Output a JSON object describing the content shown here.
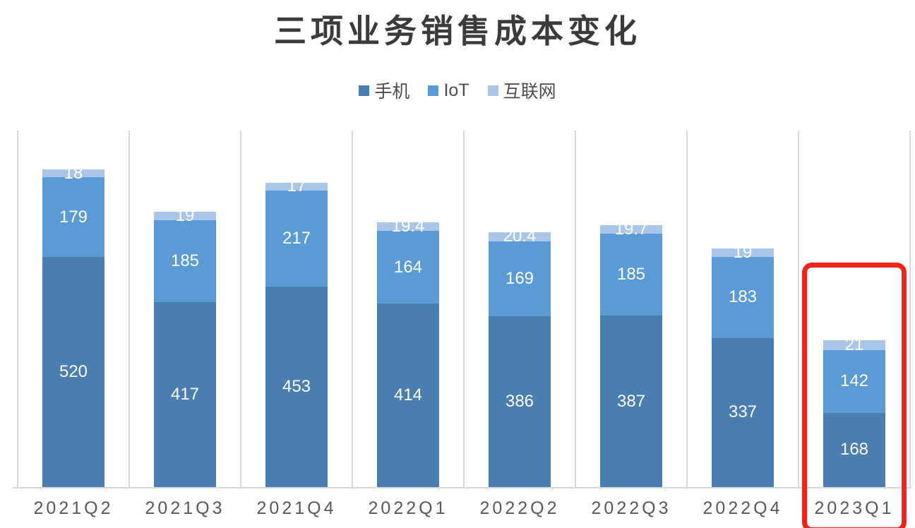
{
  "header": {
    "title": "三项业务销售成本变化"
  },
  "legend": {
    "items": [
      {
        "label": "手机",
        "color": "#4A7EB0",
        "name": "phone"
      },
      {
        "label": "IoT",
        "color": "#5B9BD5",
        "name": "iot"
      },
      {
        "label": "互联网",
        "color": "#A9C5E8",
        "name": "internet"
      }
    ]
  },
  "chart_data": {
    "type": "bar",
    "stacked": true,
    "title": "三项业务销售成本变化",
    "categories": [
      "2021Q2",
      "2021Q3",
      "2021Q4",
      "2022Q1",
      "2022Q2",
      "2022Q3",
      "2022Q4",
      "2023Q1"
    ],
    "series": [
      {
        "name": "手机",
        "color": "#4A7EB0",
        "values": [
          520,
          417,
          453,
          414,
          386,
          387,
          337,
          168
        ]
      },
      {
        "name": "IoT",
        "color": "#5B9BD5",
        "values": [
          179,
          185,
          217,
          164,
          169,
          185,
          183,
          142
        ]
      },
      {
        "name": "互联网",
        "color": "#A9C5E8",
        "values": [
          18,
          19,
          17,
          19.4,
          20.4,
          19.7,
          19,
          21
        ]
      }
    ],
    "xlabel": "",
    "ylabel": "",
    "ylim": [
      0,
      805
    ],
    "grid": "vertical-category-separators",
    "gridline_color": "#D9D9D9",
    "legend_position": "top",
    "data_labels": true,
    "data_label_color": "#FFFFFF",
    "annotation": {
      "type": "highlight-rectangle",
      "target_category": "2023Q1",
      "color": "#F22318"
    }
  }
}
